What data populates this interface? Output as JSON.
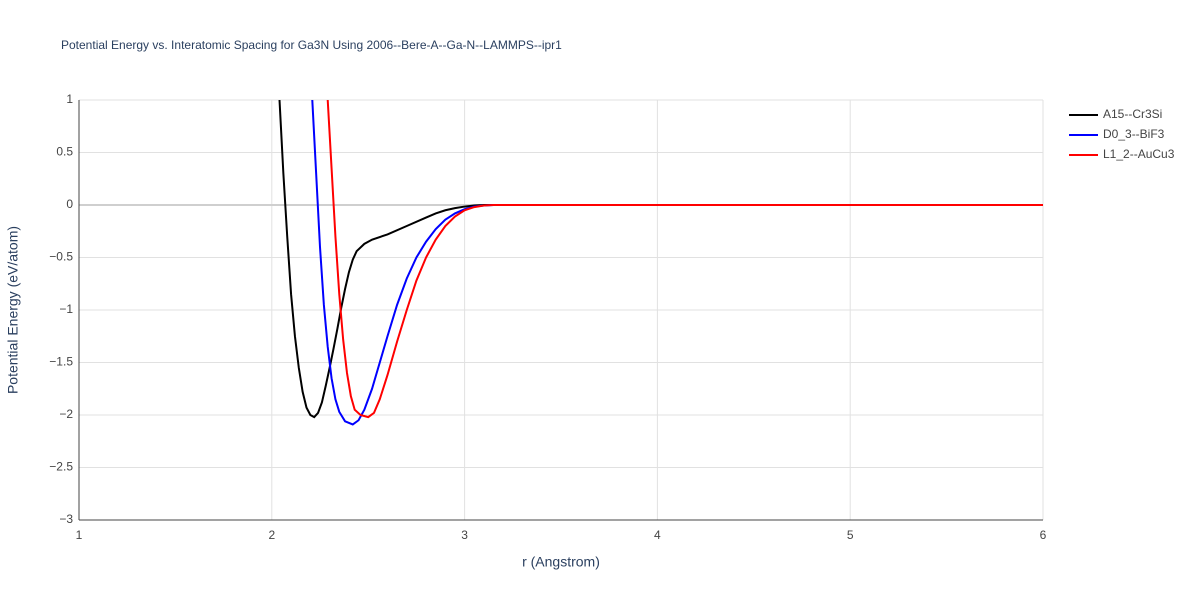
{
  "chart_data": {
    "type": "line",
    "title": "Potential Energy vs. Interatomic Spacing for Ga3N Using 2006--Bere-A--Ga-N--LAMMPS--ipr1",
    "x_label": "r (Angstrom)",
    "y_label": "Potential Energy (eV/atom)",
    "xlim": [
      1,
      6
    ],
    "ylim": [
      -3,
      1
    ],
    "xticks": [
      1,
      2,
      3,
      4,
      5,
      6
    ],
    "yticks": [
      1,
      0.5,
      0,
      {
        "value": -0.5,
        "label": "−0.5"
      },
      {
        "value": -1,
        "label": "−1"
      },
      {
        "value": -1.5,
        "label": "−1.5"
      },
      {
        "value": -2,
        "label": "−2"
      },
      {
        "value": -2.5,
        "label": "−2.5"
      },
      {
        "value": -3,
        "label": "−3"
      }
    ],
    "grid": true,
    "legend": "top-right",
    "series": [
      {
        "name": "A15--Cr3Si",
        "color": "#000000",
        "x": [
          2.04,
          2.06,
          2.08,
          2.1,
          2.12,
          2.14,
          2.16,
          2.18,
          2.2,
          2.22,
          2.24,
          2.26,
          2.28,
          2.3,
          2.32,
          2.34,
          2.36,
          2.38,
          2.4,
          2.42,
          2.44,
          2.48,
          2.52,
          2.6,
          2.7,
          2.8,
          2.85,
          2.9,
          2.95,
          3.0,
          3.05,
          3.1,
          6
        ],
        "values": [
          1.0,
          0.3,
          -0.3,
          -0.85,
          -1.25,
          -1.55,
          -1.78,
          -1.93,
          -2.0,
          -2.02,
          -1.98,
          -1.88,
          -1.72,
          -1.55,
          -1.37,
          -1.18,
          -0.98,
          -0.8,
          -0.64,
          -0.52,
          -0.44,
          -0.37,
          -0.33,
          -0.28,
          -0.2,
          -0.12,
          -0.08,
          -0.05,
          -0.03,
          -0.015,
          -0.005,
          0,
          0
        ]
      },
      {
        "name": "D0_3--BiF3",
        "color": "#0000ff",
        "x": [
          2.21,
          2.23,
          2.25,
          2.27,
          2.29,
          2.31,
          2.33,
          2.35,
          2.38,
          2.42,
          2.45,
          2.48,
          2.52,
          2.56,
          2.6,
          2.65,
          2.7,
          2.75,
          2.8,
          2.85,
          2.9,
          2.95,
          3.0,
          3.05,
          3.1,
          3.15,
          6
        ],
        "values": [
          1.0,
          0.3,
          -0.4,
          -0.95,
          -1.35,
          -1.65,
          -1.85,
          -1.97,
          -2.06,
          -2.09,
          -2.05,
          -1.95,
          -1.75,
          -1.5,
          -1.25,
          -0.95,
          -0.7,
          -0.5,
          -0.35,
          -0.23,
          -0.14,
          -0.08,
          -0.04,
          -0.015,
          -0.005,
          0,
          0
        ]
      },
      {
        "name": "L1_2--AuCu3",
        "color": "#ff0000",
        "x": [
          2.29,
          2.31,
          2.33,
          2.35,
          2.37,
          2.39,
          2.41,
          2.43,
          2.46,
          2.5,
          2.53,
          2.56,
          2.6,
          2.65,
          2.7,
          2.75,
          2.8,
          2.85,
          2.9,
          2.95,
          3.0,
          3.05,
          3.1,
          3.15,
          3.2,
          6
        ],
        "values": [
          1.0,
          0.35,
          -0.3,
          -0.85,
          -1.28,
          -1.6,
          -1.82,
          -1.95,
          -2.0,
          -2.02,
          -1.98,
          -1.85,
          -1.62,
          -1.3,
          -1.0,
          -0.72,
          -0.5,
          -0.33,
          -0.2,
          -0.11,
          -0.05,
          -0.02,
          -0.005,
          0,
          0,
          0
        ]
      }
    ]
  }
}
